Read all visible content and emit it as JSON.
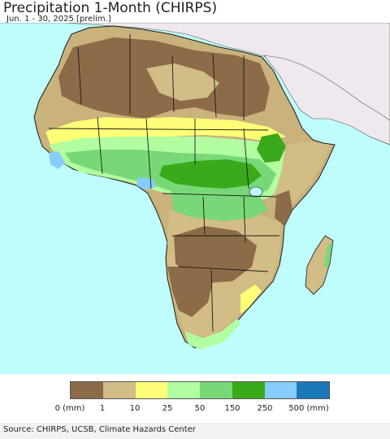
{
  "header": {
    "title": "Precipitation 1-Month (CHIRPS)",
    "subtitle": "Jun. 1 - 30, 2025 [prelim.]"
  },
  "colors": {
    "ocean": "#bffcfc",
    "non_africa_land": "#efe9ef",
    "border": "#1a1a1a"
  },
  "legend": {
    "labels": [
      "0 (mm)",
      "1",
      "10",
      "25",
      "50",
      "150",
      "250",
      "500 (mm)"
    ],
    "colors": [
      "#8c6b48",
      "#d1bd85",
      "#ffff77",
      "#b2fda0",
      "#78d878",
      "#3aaa1c",
      "#86cdfb",
      "#1a78b8"
    ]
  },
  "footer": {
    "source": "Source: CHIRPS, UCSB, Climate Hazards Center"
  }
}
